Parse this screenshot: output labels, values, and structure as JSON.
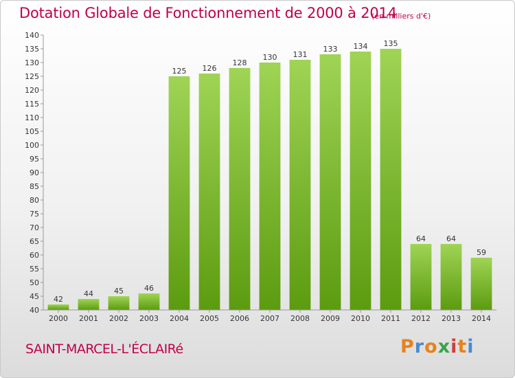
{
  "title": "Dotation Globale de Fonctionnement de 2000 à 2014",
  "subtitle": "(en milliers d'€)",
  "commune": "SAINT-MARCEL-L'ÉCLAIRé",
  "logo": {
    "letters": [
      "P",
      "r",
      "o",
      "x",
      "i",
      "t",
      "i"
    ],
    "colors": [
      "#e8821c",
      "#4a8ad0",
      "#e8821c",
      "#3aa24a",
      "#d23c3c",
      "#e8821c",
      "#4a8ad0"
    ]
  },
  "colors": {
    "accent": "#c0004a",
    "bar_top": "#9fd455",
    "bar_bottom": "#5c9b10"
  },
  "chart_data": {
    "type": "bar",
    "categories": [
      "2000",
      "2001",
      "2002",
      "2003",
      "2004",
      "2005",
      "2006",
      "2007",
      "2008",
      "2009",
      "2010",
      "2011",
      "2012",
      "2013",
      "2014"
    ],
    "values": [
      42,
      44,
      45,
      46,
      125,
      126,
      128,
      130,
      131,
      133,
      134,
      135,
      64,
      64,
      59
    ],
    "title": "Dotation Globale de Fonctionnement de 2000 à 2014",
    "ylim": [
      40,
      140
    ],
    "ytick_step": 5,
    "grid": false,
    "data_labels": true
  }
}
